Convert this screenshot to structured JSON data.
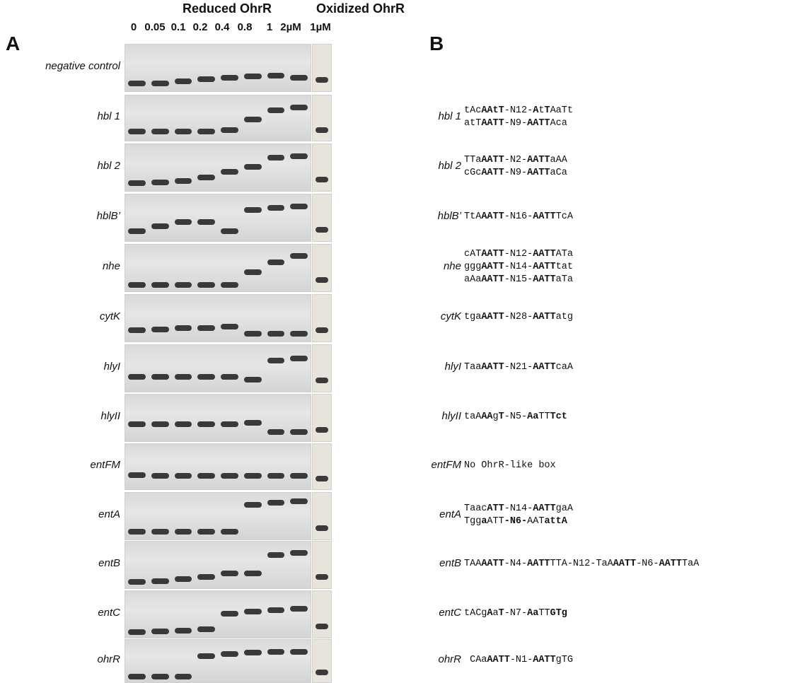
{
  "header": {
    "reduced_title": "Reduced OhrR",
    "oxidized_title": "Oxidized OhrR",
    "reduced_lanes": [
      "0",
      "0.05",
      "0.1",
      "0.2",
      "0.4",
      "0.8",
      "1",
      "2µM"
    ],
    "oxidized_lane": "1µM"
  },
  "panels": {
    "a": "A",
    "b": "B"
  },
  "rows": [
    {
      "gene": "negative control",
      "sequences": []
    },
    {
      "gene": "hbl 1",
      "sequences": [
        "tAc|AAtT|-N12-|A|t|T|AaTt",
        "atT|AATT|-N9-|AATT|Aca"
      ]
    },
    {
      "gene": "hbl 2",
      "sequences": [
        "TTa|AATT|-N2-|AATT|aAA",
        "cGc|AATT|-N9-|AATT|aCa"
      ]
    },
    {
      "gene": "hblB’",
      "sequences": [
        "TtA|AATT|-N16-|AATT|TcA"
      ]
    },
    {
      "gene": "nhe",
      "sequences": [
        "cAT|AATT|-N12-|AATT|ATa",
        "ggg|AATT|-N14-|AATT|tat",
        "aAa|AATT|-N15-|AATT|aTa"
      ]
    },
    {
      "gene": "cytK",
      "sequences": [
        "tga|AATT|-N28-|AATT|atg"
      ]
    },
    {
      "gene": "hlyI",
      "sequences": [
        "Taa|AATT|-N21-|AATT|caA"
      ]
    },
    {
      "gene": "hlyII",
      "sequences": [
        "taA|AA|g|T|-N5-|Aa|TT|Tct"
      ]
    },
    {
      "gene": "entFM",
      "sequences": [
        "No OhrR-like box"
      ]
    },
    {
      "gene": "entA",
      "sequences": [
        "Taac|ATT|-N14-|AATT|gaA",
        "Tgg|a|ATT|-N6-|AAT|attA"
      ]
    },
    {
      "gene": "entB",
      "sequences": [
        "TAA|AATT|-N4-|AATT|TTA-N12-TaA|AATT|-N6-|AATT|TaA"
      ]
    },
    {
      "gene": "entC",
      "sequences": [
        "tACg|A|a|T|-N7-|Aa|TT|GTg"
      ]
    },
    {
      "gene": "ohrR",
      "sequences": [
        " CAa|AATT|-N1-|AATT|gTG"
      ]
    }
  ],
  "colors": {
    "gel_bg": "#e6e6e6",
    "band": "#1c1c1c"
  }
}
